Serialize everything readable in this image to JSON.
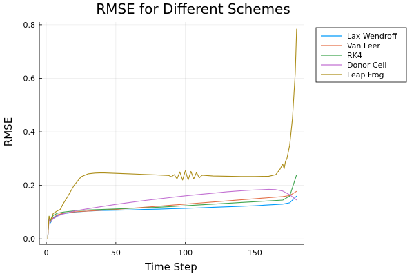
{
  "chart_data": {
    "type": "line",
    "title": "RMSE for Different Schemes",
    "xlabel": "Time Step",
    "ylabel": "RMSE",
    "xlim": [
      -5,
      185
    ],
    "ylim": [
      -0.02,
      0.81
    ],
    "xticks": [
      0,
      50,
      100,
      150
    ],
    "yticks": [
      0.0,
      0.2,
      0.4,
      0.6,
      0.8
    ],
    "xtick_labels": [
      "0",
      "50",
      "100",
      "150"
    ],
    "ytick_labels": [
      "0.0",
      "0.2",
      "0.4",
      "0.6",
      "0.8"
    ],
    "grid": true,
    "legend_position": "outside-top-right",
    "series": [
      {
        "name": "Lax Wendroff",
        "color": "#009AFA",
        "x": [
          1,
          2,
          3,
          5,
          8,
          12,
          20,
          30,
          40,
          50,
          60,
          70,
          80,
          90,
          100,
          110,
          120,
          130,
          140,
          150,
          160,
          170,
          175,
          180
        ],
        "y": [
          0.0,
          0.075,
          0.06,
          0.078,
          0.088,
          0.094,
          0.1,
          0.104,
          0.106,
          0.107,
          0.108,
          0.11,
          0.111,
          0.113,
          0.114,
          0.116,
          0.118,
          0.12,
          0.122,
          0.124,
          0.127,
          0.13,
          0.135,
          0.16
        ]
      },
      {
        "name": "Van Leer",
        "color": "#E36F47",
        "x": [
          1,
          2,
          3,
          5,
          8,
          12,
          20,
          30,
          40,
          50,
          60,
          70,
          80,
          90,
          100,
          110,
          120,
          130,
          140,
          150,
          160,
          170,
          175,
          180
        ],
        "y": [
          0.0,
          0.078,
          0.063,
          0.08,
          0.09,
          0.096,
          0.101,
          0.104,
          0.107,
          0.11,
          0.114,
          0.118,
          0.122,
          0.126,
          0.13,
          0.134,
          0.138,
          0.142,
          0.146,
          0.15,
          0.154,
          0.158,
          0.162,
          0.178
        ]
      },
      {
        "name": "RK4",
        "color": "#3EA44E",
        "x": [
          1,
          2,
          3,
          5,
          8,
          12,
          20,
          30,
          40,
          50,
          60,
          70,
          80,
          90,
          100,
          110,
          120,
          130,
          140,
          150,
          160,
          170,
          175,
          180
        ],
        "y": [
          0.0,
          0.085,
          0.068,
          0.088,
          0.096,
          0.1,
          0.105,
          0.108,
          0.11,
          0.112,
          0.114,
          0.116,
          0.118,
          0.121,
          0.124,
          0.127,
          0.13,
          0.133,
          0.136,
          0.139,
          0.142,
          0.145,
          0.16,
          0.24
        ]
      },
      {
        "name": "Donor Cell",
        "color": "#C271D2",
        "x": [
          1,
          2,
          3,
          5,
          8,
          12,
          20,
          30,
          40,
          50,
          60,
          70,
          80,
          90,
          100,
          110,
          120,
          130,
          140,
          150,
          160,
          165,
          170,
          175,
          180
        ],
        "y": [
          0.0,
          0.072,
          0.065,
          0.075,
          0.085,
          0.093,
          0.104,
          0.113,
          0.121,
          0.129,
          0.136,
          0.143,
          0.149,
          0.155,
          0.161,
          0.166,
          0.171,
          0.176,
          0.18,
          0.183,
          0.185,
          0.184,
          0.179,
          0.165,
          0.145
        ]
      },
      {
        "name": "Leap Frog",
        "color": "#AC8D18",
        "x": [
          1,
          2,
          3,
          5,
          8,
          10,
          12,
          15,
          20,
          25,
          30,
          35,
          40,
          50,
          60,
          70,
          80,
          88,
          90,
          92,
          94,
          96,
          98,
          100,
          102,
          104,
          106,
          108,
          110,
          112,
          120,
          130,
          140,
          150,
          160,
          165,
          168,
          170,
          171,
          172,
          173,
          175,
          177,
          179,
          180
        ],
        "y": [
          0.0,
          0.085,
          0.07,
          0.095,
          0.105,
          0.11,
          0.13,
          0.155,
          0.2,
          0.232,
          0.243,
          0.246,
          0.247,
          0.245,
          0.243,
          0.241,
          0.239,
          0.237,
          0.232,
          0.24,
          0.224,
          0.25,
          0.22,
          0.255,
          0.22,
          0.252,
          0.224,
          0.248,
          0.228,
          0.238,
          0.235,
          0.234,
          0.233,
          0.233,
          0.234,
          0.24,
          0.26,
          0.28,
          0.262,
          0.29,
          0.3,
          0.35,
          0.45,
          0.62,
          0.785
        ]
      }
    ]
  }
}
